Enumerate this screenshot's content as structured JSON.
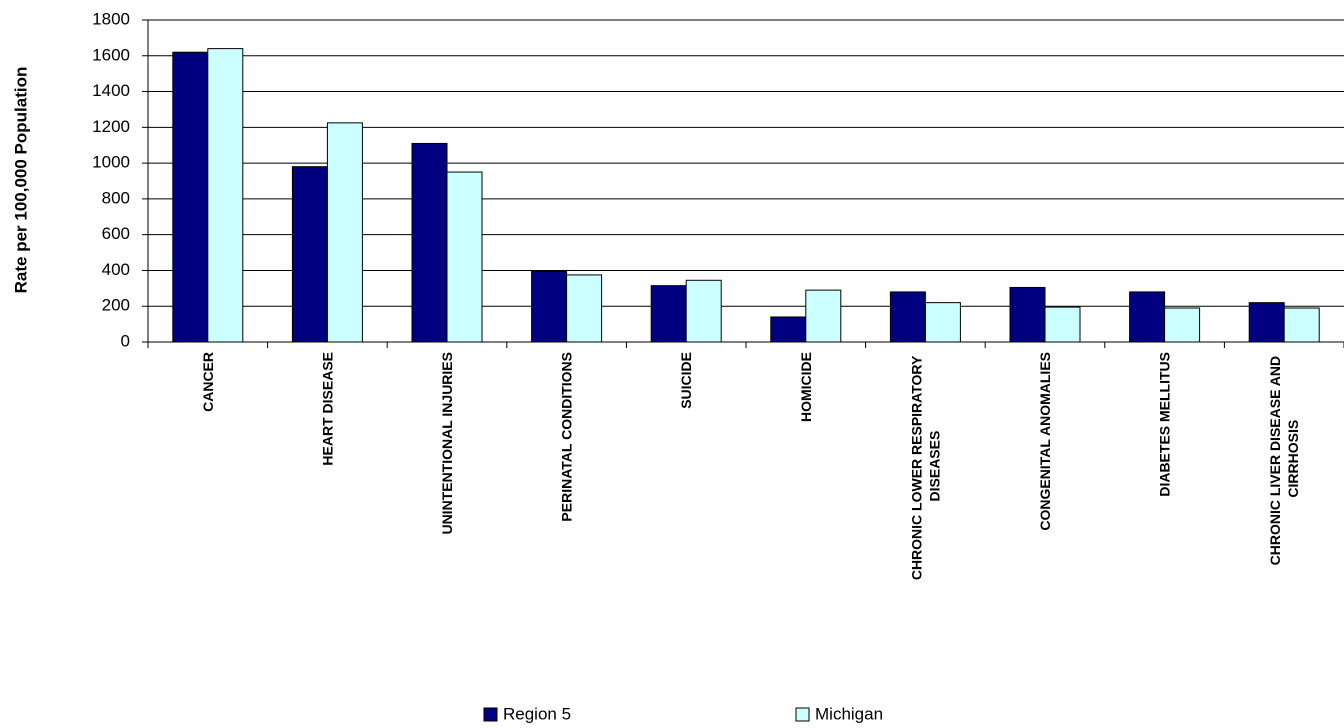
{
  "chart_data": {
    "type": "bar",
    "y_axis_label": "Rate per 100,000 Population",
    "categories": [
      "CANCER",
      "HEART DISEASE",
      "UNINTENTIONAL INJURIES",
      "PERINATAL CONDITIONS",
      "SUICIDE",
      "HOMICIDE",
      "CHRONIC LOWER RESPIRATORY DISEASES",
      "CONGENITAL ANOMALIES",
      "DIABETES MELLITUS",
      "CHRONIC LIVER DISEASE AND CIRRHOSIS"
    ],
    "series": [
      {
        "name": "Region 5",
        "color": "#000080",
        "values": [
          1620,
          980,
          1110,
          395,
          315,
          140,
          280,
          305,
          280,
          220
        ]
      },
      {
        "name": "Michigan",
        "color": "#ccffff",
        "values": [
          1640,
          1225,
          950,
          375,
          345,
          290,
          220,
          195,
          190,
          190
        ]
      }
    ],
    "ylim": [
      0,
      1800
    ],
    "yticks": [
      0,
      200,
      400,
      600,
      800,
      1000,
      1200,
      1400,
      1600,
      1800
    ],
    "grid": true,
    "legend": "bottom"
  }
}
